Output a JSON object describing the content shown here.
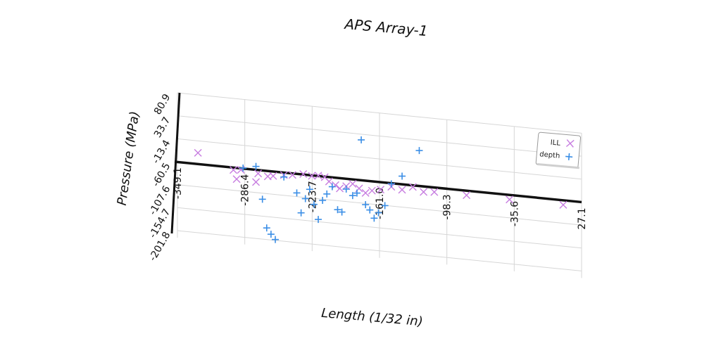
{
  "chart_data": {
    "type": "scatter",
    "title": "APS Array-1",
    "xlabel": "Length (1/32 in)",
    "ylabel": "Pressure (MPa)",
    "xlim": [
      -349.1,
      27.1
    ],
    "ylim": [
      -201.8,
      80.9
    ],
    "x_ticks": [
      "-349.1",
      "-286.4",
      "-223.7",
      "-161.0",
      "-98.3",
      "-35.6",
      "27.1"
    ],
    "y_ticks": [
      "-201.8",
      "-154.7",
      "-107.6",
      "-60.5",
      "-13.4",
      "33.7",
      "80.9"
    ],
    "grid": true,
    "legend_position": "right",
    "series": [
      {
        "name": "ILL",
        "marker": "x",
        "color": "#c77de0",
        "points": [
          [
            -330,
            -38
          ],
          [
            -297,
            -66
          ],
          [
            -294,
            -84
          ],
          [
            -290,
            -64
          ],
          [
            -276,
            -86
          ],
          [
            -274,
            -68
          ],
          [
            -265,
            -72
          ],
          [
            -260,
            -70
          ],
          [
            -250,
            -66
          ],
          [
            -242,
            -64
          ],
          [
            -232,
            -60
          ],
          [
            -224,
            -62
          ],
          [
            -218,
            -60
          ],
          [
            -212,
            -62
          ],
          [
            -208,
            -70
          ],
          [
            -202,
            -76
          ],
          [
            -198,
            -82
          ],
          [
            -192,
            -76
          ],
          [
            -186,
            -70
          ],
          [
            -180,
            -78
          ],
          [
            -174,
            -86
          ],
          [
            -168,
            -80
          ],
          [
            -160,
            -76
          ],
          [
            -150,
            -68
          ],
          [
            -140,
            -72
          ],
          [
            -130,
            -64
          ],
          [
            -120,
            -72
          ],
          [
            -110,
            -70
          ],
          [
            -80,
            -70
          ],
          [
            -40,
            -70
          ],
          [
            10,
            -70
          ]
        ]
      },
      {
        "name": "depth",
        "marker": "+",
        "color": "#3a8ee6",
        "points": [
          [
            -288,
            -60
          ],
          [
            -276,
            -54
          ],
          [
            -270,
            -120
          ],
          [
            -266,
            -178
          ],
          [
            -262,
            -190
          ],
          [
            -258,
            -200
          ],
          [
            -250,
            -70
          ],
          [
            -238,
            -100
          ],
          [
            -234,
            -140
          ],
          [
            -230,
            -110
          ],
          [
            -226,
            -90
          ],
          [
            -222,
            -120
          ],
          [
            -218,
            -150
          ],
          [
            -214,
            -110
          ],
          [
            -210,
            -96
          ],
          [
            -205,
            -80
          ],
          [
            -200,
            -126
          ],
          [
            -196,
            -130
          ],
          [
            -192,
            -82
          ],
          [
            -186,
            -94
          ],
          [
            -182,
            -88
          ],
          [
            -178,
            22
          ],
          [
            -174,
            -110
          ],
          [
            -170,
            -120
          ],
          [
            -166,
            -136
          ],
          [
            -162,
            -124
          ],
          [
            -156,
            -108
          ],
          [
            -150,
            -62
          ],
          [
            -140,
            -44
          ],
          [
            -124,
            12
          ]
        ]
      }
    ]
  }
}
